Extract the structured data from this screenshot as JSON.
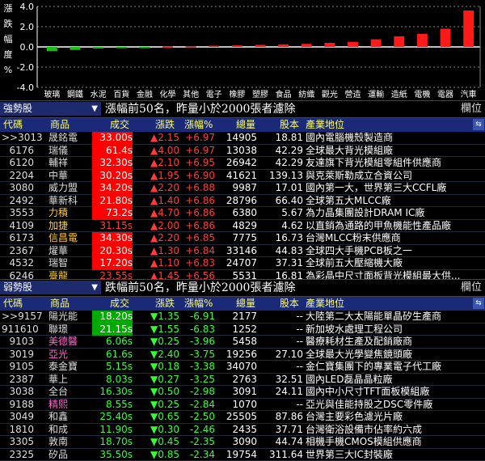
{
  "chart_data": {
    "type": "bar",
    "ylabel": "漲跌幅度%",
    "ylim": [
      -4.0,
      4.0
    ],
    "yticks": [
      "4.0",
      "2.0",
      "0.0",
      "-2.0",
      "-4.0"
    ],
    "categories": [
      "玻璃",
      "鋼鐵",
      "水泥",
      "百貨",
      "金融",
      "化學",
      "其他",
      "電子",
      "橡膠",
      "塑膠",
      "食品",
      "紡織",
      "觀光",
      "營造",
      "運輸",
      "造紙",
      "電機",
      "電器",
      "汽車"
    ],
    "values": [
      -0.4,
      -0.3,
      -0.15,
      -0.05,
      -0.05,
      0.05,
      0.08,
      0.12,
      0.15,
      0.2,
      0.25,
      0.3,
      0.4,
      0.5,
      0.75,
      1.05,
      1.3,
      1.8,
      3.6
    ],
    "colors": {
      "up": "#ff1a1a",
      "down": "#19c019"
    }
  },
  "top": {
    "selector": "強勢股",
    "title": "漲幅前50名，昨量小於2000張者濾除",
    "label_right": "欄位",
    "headers": {
      "code": "代碼",
      "name": "商品",
      "price": "成交",
      "chg": "漲跌",
      "pct": "漲幅%",
      "vol": "總量",
      "cap": "股本",
      "ind": "產業地位"
    },
    "rows": [
      {
        "code": ">>3013",
        "name": "晟銘電",
        "price": "33.00s",
        "chg": "▲2.15",
        "pct": "+6.97",
        "vol": "14905",
        "cap": "18.81",
        "ind": "國內電腦機殼製造商"
      },
      {
        "code": "6176",
        "name": "瑞儀",
        "price": "61.4s",
        "chg": "▲4.00",
        "pct": "+6.97",
        "vol": "13038",
        "cap": "42.29",
        "ind": "全球最大背光模組廠"
      },
      {
        "code": "6120",
        "name": "輔祥",
        "price": "32.30s",
        "chg": "▲2.10",
        "pct": "+6.95",
        "vol": "26942",
        "cap": "42.29",
        "ind": "友達旗下背光模組零組件供應商"
      },
      {
        "code": "2204",
        "name": "中華",
        "price": "30.20s",
        "chg": "▲1.95",
        "pct": "+6.90",
        "vol": "41621",
        "cap": "139.13",
        "ind": "與克萊斯勒成立合資公司"
      },
      {
        "code": "3080",
        "name": "威力盟",
        "price": "34.20s",
        "chg": "▲2.20",
        "pct": "+6.88",
        "vol": "9987",
        "cap": "17.01",
        "ind": "國內第一大，世界第三大CCFL廠"
      },
      {
        "code": "2492",
        "name": "華新科",
        "price": "21.80s",
        "chg": "▲1.40",
        "pct": "+6.86",
        "vol": "28796",
        "cap": "66.40",
        "ind": "全球第五大MLCC廠"
      },
      {
        "code": "3553",
        "name": "力積",
        "price": "73.2s",
        "chg": "▲4.70",
        "pct": "+6.86",
        "vol": "6380",
        "cap": "5.67",
        "ind": "為力晶集團設計DRAM IC廠"
      },
      {
        "code": "4109",
        "name": "加捷",
        "price": "31.15s",
        "chg": "▲2.00",
        "pct": "+6.86",
        "vol": "4829",
        "cap": "4.62",
        "ind": "以直銷為通路的甲魚機能性產品廠"
      },
      {
        "code": "6173",
        "name": "信昌電",
        "price": "34.30s",
        "chg": "▲2.20",
        "pct": "+6.85",
        "vol": "7775",
        "cap": "16.73",
        "ind": "台灣MLCC粉末供應商"
      },
      {
        "code": "2367",
        "name": "燿華",
        "price": "20.30s",
        "chg": "▲1.30",
        "pct": "+6.84",
        "vol": "33146",
        "cap": "44.83",
        "ind": "全球四大手機PCB板之一"
      },
      {
        "code": "4532",
        "name": "瑞智",
        "price": "17.20s",
        "chg": "▲1.10",
        "pct": "+6.83",
        "vol": "24707",
        "cap": "37.31",
        "ind": "全球前五大壓縮機大廠"
      },
      {
        "code": "6246",
        "name": "臺龍",
        "price": "23.55s",
        "chg": "▲1.45",
        "pct": "+6.56",
        "vol": "5531",
        "cap": "16.81",
        "ind": "為彩晶中尺寸面板背光模組最大供..."
      }
    ]
  },
  "bottom": {
    "selector": "弱勢股",
    "title": "跌幅前50名，昨量小於2000張者濾除",
    "label_right": "欄位",
    "headers": {
      "code": "代碼",
      "name": "商品",
      "price": "成交",
      "chg": "漲跌",
      "pct": "漲幅%",
      "vol": "總量",
      "cap": "股本",
      "ind": "產業地位"
    },
    "rows": [
      {
        "code": ">>9157",
        "name": "陽光能",
        "price": "18.20s",
        "chg": "▼1.35",
        "pct": "-6.91",
        "vol": "2177",
        "cap": "--",
        "ind": "大陸第二大太陽能單晶矽生產商"
      },
      {
        "code": "911610",
        "name": "聯璟",
        "price": "21.15s",
        "chg": "▼1.55",
        "pct": "-6.83",
        "vol": "1252",
        "cap": "--",
        "ind": "新加坡水處理工程公司"
      },
      {
        "code": "9103",
        "name": "美德醫",
        "price": "6.06s",
        "chg": "▼0.25",
        "pct": "-3.96",
        "vol": "5458",
        "cap": "--",
        "ind": "醫療耗材生產及配銷廠商"
      },
      {
        "code": "3019",
        "name": "亞光",
        "price": "61.6s",
        "chg": "▼2.40",
        "pct": "-3.75",
        "vol": "19256",
        "cap": "27.10",
        "ind": "全球最大光學變焦鏡頭廠"
      },
      {
        "code": "9105",
        "name": "泰金寶",
        "price": "5.15s",
        "chg": "▼0.18",
        "pct": "-3.38",
        "vol": "34070",
        "cap": "--",
        "ind": "金仁寶集團下的專業電子代工廠"
      },
      {
        "code": "2387",
        "name": "華上",
        "price": "8.03s",
        "chg": "▼0.27",
        "pct": "-3.25",
        "vol": "2763",
        "cap": "32.51",
        "ind": "國內LED磊晶晶粒廠"
      },
      {
        "code": "3038",
        "name": "全台",
        "price": "16.30s",
        "chg": "▼0.50",
        "pct": "-2.98",
        "vol": "3091",
        "cap": "24.11",
        "ind": "國內中小尺寸TFT面板模組廠"
      },
      {
        "code": "9188",
        "name": "精熙",
        "price": "8.55s",
        "chg": "▼0.25",
        "pct": "-2.84",
        "vol": "1070",
        "cap": "--",
        "ind": "亞光與佳能持股之DSC零件廠"
      },
      {
        "code": "3049",
        "name": "和鑫",
        "price": "25.40s",
        "chg": "▼0.65",
        "pct": "-2.50",
        "vol": "25505",
        "cap": "87.86",
        "ind": "台灣主要彩色濾光片廠"
      },
      {
        "code": "1810",
        "name": "和成",
        "price": "11.90s",
        "chg": "▼0.30",
        "pct": "-2.46",
        "vol": "2435",
        "cap": "37.71",
        "ind": "台灣衛浴設備市佔率約六成"
      },
      {
        "code": "3305",
        "name": "敦南",
        "price": "18.70s",
        "chg": "▼0.45",
        "pct": "-2.35",
        "vol": "3090",
        "cap": "44.74",
        "ind": "相機手機CMOS模組供應商"
      },
      {
        "code": "2325",
        "name": "矽品",
        "price": "35.50s",
        "chg": "▼0.85",
        "pct": "-2.34",
        "vol": "19754",
        "cap": "311.64",
        "ind": "世界第三大IC封裝廠"
      }
    ]
  }
}
